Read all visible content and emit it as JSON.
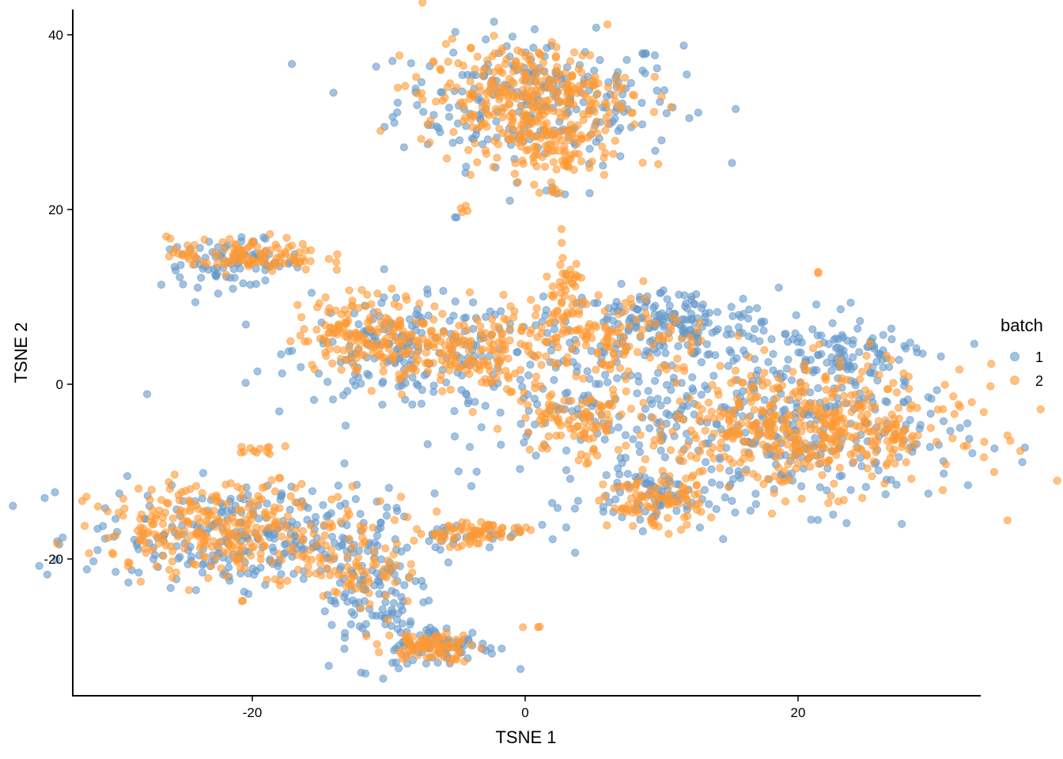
{
  "chart_data": {
    "type": "scatter",
    "title": "",
    "xlabel": "TSNE 1",
    "ylabel": "TSNE 2",
    "xlim": [
      -33.2,
      33.4
    ],
    "ylim": [
      -35.5,
      43
    ],
    "x_ticks": [
      -20,
      0,
      20
    ],
    "x_tick_labels": [
      "-20",
      "0",
      "20"
    ],
    "y_ticks": [
      -20,
      0,
      20,
      40
    ],
    "y_tick_labels": [
      "-20",
      "0",
      "20",
      "40"
    ],
    "grid": false,
    "point_alpha": 0.6,
    "legend": {
      "title": "batch",
      "position": "right",
      "entries": [
        {
          "label": "1",
          "color": "#6699CC"
        },
        {
          "label": "2",
          "color": "#FF9933"
        }
      ]
    },
    "series": [
      {
        "name": "1",
        "color": "#6699CC",
        "clusters": [
          {
            "cx": 1.0,
            "cy": 32.5,
            "sx": 5.2,
            "sy": 3.6,
            "n": 260
          },
          {
            "cx": -21.5,
            "cy": 13.8,
            "sx": 2.6,
            "sy": 1.3,
            "n": 90
          },
          {
            "cx": -8.5,
            "cy": 4.0,
            "sx": 4.2,
            "sy": 2.8,
            "n": 160
          },
          {
            "cx": 10.5,
            "cy": 7.0,
            "sx": 4.0,
            "sy": 2.0,
            "n": 170
          },
          {
            "cx": 23.0,
            "cy": 3.5,
            "sx": 2.4,
            "sy": 1.6,
            "n": 90
          },
          {
            "cx": 8.0,
            "cy": -2.0,
            "sx": 9.5,
            "sy": 5.5,
            "n": 330
          },
          {
            "cx": 21.5,
            "cy": -6.0,
            "sx": 5.5,
            "sy": 4.0,
            "n": 200
          },
          {
            "cx": 9.5,
            "cy": -13.0,
            "sx": 2.5,
            "sy": 1.8,
            "n": 70
          },
          {
            "cx": -21.0,
            "cy": -17.5,
            "sx": 5.5,
            "sy": 2.8,
            "n": 280
          },
          {
            "cx": -11.0,
            "cy": -23.5,
            "sx": 2.0,
            "sy": 4.0,
            "n": 110
          },
          {
            "cx": -6.0,
            "cy": -30.0,
            "sx": 2.0,
            "sy": 1.2,
            "n": 80
          },
          {
            "cx": -4.0,
            "cy": -17.0,
            "sx": 2.2,
            "sy": 0.9,
            "n": 25
          },
          {
            "cx": -1.0,
            "cy": 21.0,
            "sx": 0.1,
            "sy": 0.1,
            "n": 1
          },
          {
            "cx": -5.0,
            "cy": 19.3,
            "sx": 0.3,
            "sy": 0.3,
            "n": 2
          },
          {
            "cx": 2.5,
            "cy": 21.8,
            "sx": 1.0,
            "sy": 0.3,
            "n": 5
          }
        ]
      },
      {
        "name": "2",
        "color": "#FF9933",
        "clusters": [
          {
            "cx": 0.0,
            "cy": 33.0,
            "sx": 3.8,
            "sy": 3.0,
            "n": 320
          },
          {
            "cx": 1.5,
            "cy": 27.0,
            "sx": 2.5,
            "sy": 1.8,
            "n": 90
          },
          {
            "cx": -20.5,
            "cy": 14.8,
            "sx": 2.8,
            "sy": 1.0,
            "n": 110
          },
          {
            "cx": -11.5,
            "cy": 6.0,
            "sx": 2.6,
            "sy": 2.2,
            "n": 150
          },
          {
            "cx": -5.5,
            "cy": 3.5,
            "sx": 2.6,
            "sy": 2.2,
            "n": 130
          },
          {
            "cx": 5.0,
            "cy": 5.0,
            "sx": 4.5,
            "sy": 2.5,
            "n": 180
          },
          {
            "cx": 3.0,
            "cy": 10.5,
            "sx": 0.8,
            "sy": 2.2,
            "n": 40
          },
          {
            "cx": 3.5,
            "cy": -4.5,
            "sx": 2.2,
            "sy": 2.0,
            "n": 90
          },
          {
            "cx": 20.5,
            "cy": -5.0,
            "sx": 5.8,
            "sy": 3.5,
            "n": 480
          },
          {
            "cx": 9.5,
            "cy": -13.5,
            "sx": 1.8,
            "sy": 1.5,
            "n": 90
          },
          {
            "cx": -21.5,
            "cy": -16.5,
            "sx": 5.0,
            "sy": 2.6,
            "n": 300
          },
          {
            "cx": -12.0,
            "cy": -21.5,
            "sx": 1.8,
            "sy": 2.5,
            "n": 60
          },
          {
            "cx": -7.0,
            "cy": -30.0,
            "sx": 1.6,
            "sy": 0.8,
            "n": 80
          },
          {
            "cx": -4.0,
            "cy": -17.0,
            "sx": 2.0,
            "sy": 0.8,
            "n": 70
          },
          {
            "cx": -20.0,
            "cy": -7.5,
            "sx": 1.0,
            "sy": 0.3,
            "n": 12
          },
          {
            "cx": 2.0,
            "cy": 22.0,
            "sx": 0.8,
            "sy": 0.2,
            "n": 6
          },
          {
            "cx": -4.5,
            "cy": 20.0,
            "sx": 0.2,
            "sy": 0.2,
            "n": 4
          },
          {
            "cx": 21.5,
            "cy": 12.8,
            "sx": 0.05,
            "sy": 0.05,
            "n": 2
          },
          {
            "cx": 1.0,
            "cy": -27.8,
            "sx": 0.05,
            "sy": 0.05,
            "n": 2
          },
          {
            "cx": -0.2,
            "cy": -27.8,
            "sx": 0.05,
            "sy": 0.05,
            "n": 1
          },
          {
            "cx": -20.7,
            "cy": -24.8,
            "sx": 0.05,
            "sy": 0.05,
            "n": 2
          }
        ]
      }
    ]
  },
  "axes": {
    "x_title": "TSNE 1",
    "y_title": "TSNE 2",
    "x_ticks": [
      "-20",
      "0",
      "20"
    ],
    "y_ticks": [
      "40",
      "20",
      "0",
      "-20"
    ]
  },
  "legend": {
    "title": "batch",
    "items": [
      {
        "label": "1",
        "color": "#6699CC"
      },
      {
        "label": "2",
        "color": "#FF9933"
      }
    ]
  }
}
